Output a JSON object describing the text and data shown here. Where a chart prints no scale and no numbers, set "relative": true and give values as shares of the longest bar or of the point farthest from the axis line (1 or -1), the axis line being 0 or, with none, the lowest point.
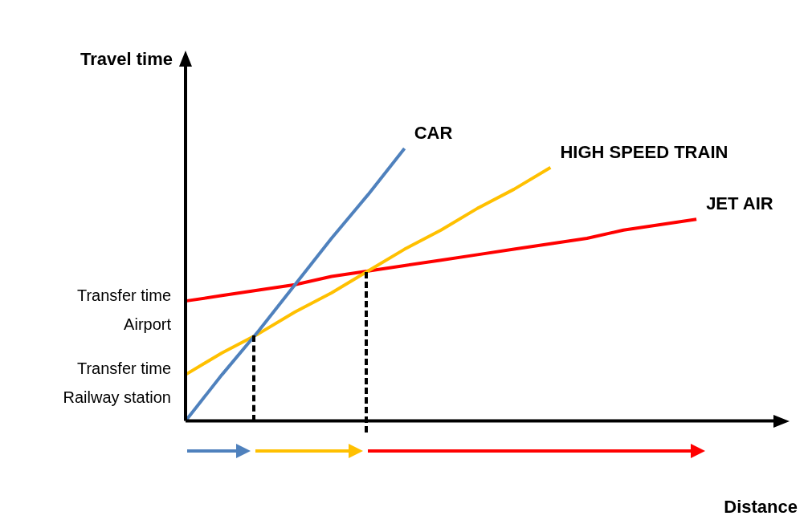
{
  "chart_data": {
    "type": "line",
    "relative": true,
    "xlabel": "Distance",
    "ylabel": "Travel time",
    "legend": false,
    "marker": "none",
    "categories": [
      null,
      null,
      null,
      null,
      null,
      null,
      null,
      null,
      null,
      null,
      null,
      null,
      null,
      null,
      null,
      null,
      null
    ],
    "annotations": [
      "Transfer time Airport",
      "Transfer time Railway station"
    ],
    "series": [
      {
        "name": "CAR",
        "color": "#4f81bd",
        "values": [
          0,
          0.17,
          0.33,
          0.5,
          0.67,
          0.83,
          1,
          null,
          null,
          null,
          null,
          null,
          null,
          null,
          null,
          null,
          null
        ]
      },
      {
        "name": "HIGH SPEED TRAIN",
        "color": "#ffc000",
        "values": [
          0.17,
          0.25,
          0.32,
          0.4,
          0.47,
          0.55,
          0.63,
          0.7,
          0.78,
          0.85,
          0.93,
          null,
          null,
          null,
          null,
          null,
          null
        ]
      },
      {
        "name": "JET AIR",
        "color": "#ff0000",
        "values": [
          0.44,
          0.46,
          0.48,
          0.5,
          0.53,
          0.55,
          0.57,
          0.59,
          0.61,
          0.63,
          0.65,
          0.67,
          0.7,
          0.72,
          0.74,
          null,
          null
        ]
      }
    ]
  }
}
